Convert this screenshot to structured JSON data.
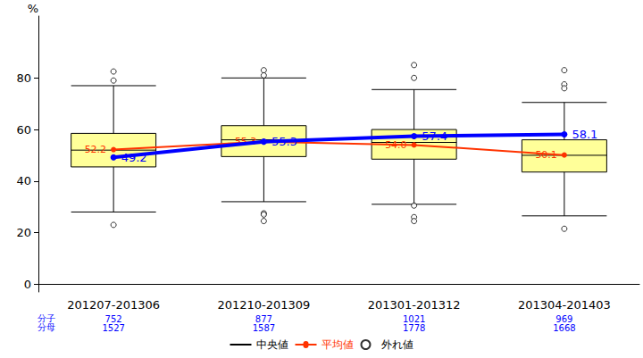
{
  "chart_data": {
    "type": "boxplot",
    "y_label": "%",
    "categories": [
      "201207-201306",
      "201210-201309",
      "201301-201312",
      "201304-201403"
    ],
    "boxes": {
      "name": "中央値",
      "color": "#ffff99",
      "low": [
        28,
        32,
        31,
        26.5
      ],
      "q1": [
        45.5,
        49.5,
        48.5,
        43.5
      ],
      "median": [
        52,
        56,
        55,
        50
      ],
      "q3": [
        58.5,
        61.5,
        60,
        56
      ],
      "high": [
        77,
        80,
        75.5,
        70.5
      ]
    },
    "outliers": {
      "name": "外れ値",
      "values": [
        [
          82.5,
          79,
          23
        ],
        [
          83,
          81,
          27.5,
          27,
          24.5
        ],
        [
          85,
          80,
          30.5,
          26,
          24.5
        ],
        [
          83,
          77.5,
          76,
          21.5
        ]
      ]
    },
    "series": [
      {
        "name": "平均値",
        "type": "line",
        "color": "#ff3300",
        "marker": "circle",
        "data_labels": true,
        "values": [
          52.2,
          55.3,
          54.0,
          50.1
        ],
        "value_labels": [
          "52.2",
          "55.3",
          "54.0",
          "50.1"
        ]
      },
      {
        "type": "line",
        "color": "#0000ff",
        "marker": "circle",
        "data_labels": true,
        "values": [
          49.2,
          55.3,
          57.4,
          58.1
        ]
      }
    ],
    "numerator": {
      "label": "分子",
      "values": [
        752,
        877,
        1021,
        969
      ]
    },
    "denominator": {
      "label": "分母",
      "values": [
        1527,
        1587,
        1778,
        1668
      ]
    },
    "ylim": [
      -3,
      104
    ],
    "yticks": [
      0,
      20,
      40,
      60,
      80
    ],
    "grid": false,
    "legend": "bottom"
  }
}
